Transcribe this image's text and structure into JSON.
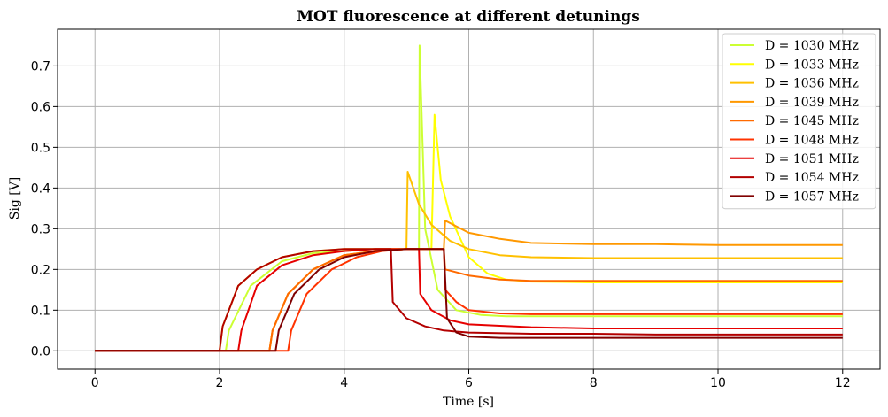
{
  "chart_data": {
    "type": "line",
    "title": "MOT fluorescence at different detunings",
    "xlabel": "Time [s]",
    "ylabel": "Sig [V]",
    "xlim": [
      -0.6,
      12.6
    ],
    "ylim": [
      -0.045,
      0.79
    ],
    "xticks": [
      0,
      2,
      4,
      6,
      8,
      10,
      12
    ],
    "yticks": [
      0.0,
      0.1,
      0.2,
      0.3,
      0.4,
      0.5,
      0.6,
      0.7
    ],
    "grid": true,
    "legend_position": "top-right",
    "series": [
      {
        "name": "D = 1030 MHz",
        "color": "#ccff33",
        "x": [
          0,
          2.1,
          2.15,
          2.5,
          3.0,
          3.5,
          4.0,
          4.5,
          5.0,
          5.2,
          5.21,
          5.3,
          5.5,
          5.8,
          6.2,
          6.6,
          7.0,
          8.0,
          9.0,
          10.0,
          12.0
        ],
        "y": [
          0,
          0,
          0.05,
          0.16,
          0.22,
          0.24,
          0.245,
          0.25,
          0.25,
          0.25,
          0.75,
          0.3,
          0.15,
          0.1,
          0.088,
          0.085,
          0.085,
          0.085,
          0.085,
          0.085,
          0.085
        ]
      },
      {
        "name": "D = 1033 MHz",
        "color": "#ffff00",
        "x": [
          0,
          2.0,
          2.05,
          2.3,
          2.6,
          3.0,
          3.5,
          4.0,
          4.5,
          5.0,
          5.4,
          5.45,
          5.55,
          5.7,
          6.0,
          6.3,
          6.6,
          7.0,
          8.0,
          9.0,
          10.0,
          12.0
        ],
        "y": [
          0,
          0,
          0.06,
          0.16,
          0.2,
          0.23,
          0.245,
          0.25,
          0.25,
          0.25,
          0.25,
          0.58,
          0.42,
          0.33,
          0.23,
          0.19,
          0.175,
          0.17,
          0.168,
          0.168,
          0.168,
          0.168
        ]
      },
      {
        "name": "D = 1036 MHz",
        "color": "#ffc000",
        "x": [
          0,
          2.8,
          2.85,
          3.1,
          3.5,
          4.0,
          4.5,
          5.0,
          5.02,
          5.2,
          5.4,
          5.7,
          6.0,
          6.5,
          7.0,
          8.0,
          9.0,
          10.0,
          12.0
        ],
        "y": [
          0,
          0,
          0.05,
          0.14,
          0.2,
          0.235,
          0.245,
          0.25,
          0.44,
          0.36,
          0.31,
          0.27,
          0.25,
          0.235,
          0.23,
          0.228,
          0.228,
          0.228,
          0.228
        ]
      },
      {
        "name": "D = 1039 MHz",
        "color": "#ff9800",
        "x": [
          0,
          2.8,
          2.85,
          3.1,
          3.5,
          4.0,
          4.5,
          5.0,
          5.5,
          5.6,
          5.62,
          6.0,
          6.5,
          7.0,
          8.0,
          9.0,
          10.0,
          12.0
        ],
        "y": [
          0,
          0,
          0.05,
          0.14,
          0.2,
          0.235,
          0.245,
          0.25,
          0.25,
          0.25,
          0.32,
          0.29,
          0.275,
          0.265,
          0.262,
          0.262,
          0.26,
          0.26
        ]
      },
      {
        "name": "D = 1045 MHz",
        "color": "#ff6a00",
        "x": [
          0,
          2.8,
          2.85,
          3.1,
          3.5,
          4.0,
          4.5,
          5.0,
          5.6,
          5.62,
          6.0,
          6.5,
          7.0,
          8.0,
          9.0,
          10.0,
          12.0
        ],
        "y": [
          0,
          0,
          0.05,
          0.14,
          0.2,
          0.235,
          0.245,
          0.25,
          0.25,
          0.2,
          0.185,
          0.175,
          0.172,
          0.172,
          0.172,
          0.172,
          0.172
        ]
      },
      {
        "name": "D = 1048 MHz",
        "color": "#ff3300",
        "x": [
          0,
          3.1,
          3.15,
          3.4,
          3.8,
          4.2,
          4.6,
          5.0,
          5.6,
          5.62,
          5.8,
          6.0,
          6.5,
          7.0,
          8.0,
          9.0,
          10.0,
          12.0
        ],
        "y": [
          0,
          0,
          0.05,
          0.14,
          0.2,
          0.23,
          0.245,
          0.25,
          0.25,
          0.15,
          0.12,
          0.1,
          0.092,
          0.09,
          0.09,
          0.09,
          0.09,
          0.09
        ]
      },
      {
        "name": "D = 1051 MHz",
        "color": "#e60000",
        "x": [
          0,
          2.3,
          2.35,
          2.6,
          3.0,
          3.5,
          4.0,
          4.5,
          5.0,
          5.2,
          5.22,
          5.4,
          5.7,
          6.0,
          7.0,
          8.0,
          9.0,
          10.0,
          12.0
        ],
        "y": [
          0,
          0,
          0.05,
          0.16,
          0.21,
          0.235,
          0.245,
          0.25,
          0.25,
          0.25,
          0.14,
          0.1,
          0.075,
          0.065,
          0.058,
          0.055,
          0.055,
          0.055,
          0.055
        ]
      },
      {
        "name": "D = 1054 MHz",
        "color": "#b30000",
        "x": [
          0,
          2.0,
          2.05,
          2.3,
          2.6,
          3.0,
          3.5,
          4.0,
          4.5,
          4.75,
          4.78,
          5.0,
          5.3,
          5.6,
          6.0,
          7.0,
          8.0,
          9.0,
          10.0,
          12.0
        ],
        "y": [
          0,
          0,
          0.06,
          0.16,
          0.2,
          0.23,
          0.245,
          0.25,
          0.25,
          0.25,
          0.12,
          0.08,
          0.06,
          0.05,
          0.045,
          0.042,
          0.042,
          0.04,
          0.04,
          0.04
        ]
      },
      {
        "name": "D = 1057 MHz",
        "color": "#800000",
        "x": [
          0,
          2.9,
          2.95,
          3.2,
          3.6,
          4.0,
          4.5,
          5.0,
          5.6,
          5.65,
          5.8,
          6.0,
          6.5,
          7.0,
          8.0,
          9.0,
          10.0,
          12.0
        ],
        "y": [
          0,
          0,
          0.05,
          0.14,
          0.2,
          0.23,
          0.245,
          0.25,
          0.25,
          0.08,
          0.045,
          0.035,
          0.032,
          0.032,
          0.032,
          0.032,
          0.032,
          0.032
        ]
      }
    ]
  }
}
